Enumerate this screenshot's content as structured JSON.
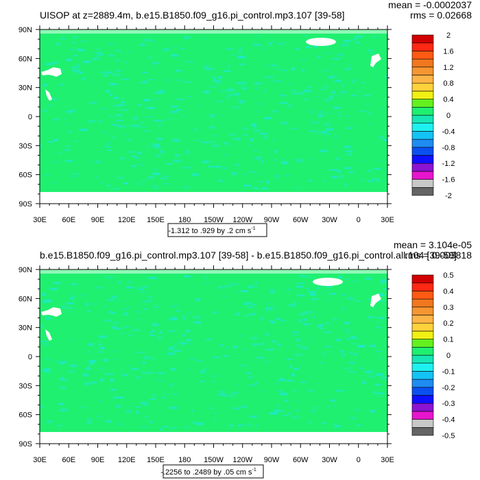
{
  "colors": {
    "background_field": "#20f070",
    "land_mask": "#ffffff",
    "land_speckle": "#1ee8c8"
  },
  "colorbar_colors": [
    "#646464",
    "#c8c8c8",
    "#e615cd",
    "#8c14d2",
    "#0f0fff",
    "#0a50f0",
    "#1e8cf0",
    "#14c3f5",
    "#1ef0f0",
    "#16e6b4",
    "#20f070",
    "#64f020",
    "#f0f014",
    "#ffd23c",
    "#ffb446",
    "#f59632",
    "#f0781e",
    "#ff5a14",
    "#ff2814",
    "#d20000"
  ],
  "chart_data": [
    {
      "type": "heatmap",
      "title": "UISOP at z=2889.4m, b.e15.B1850.f09_g16.pi_control.mp3.107 [39-58]",
      "stats": {
        "mean": "mean = -0.0002037",
        "rms": "rms = 0.02668"
      },
      "contour_info": "-1.312 to .929 by .2 cm s",
      "contour_info_sup": "-1",
      "x_ticks": [
        "30E",
        "60E",
        "90E",
        "120E",
        "150E",
        "180",
        "150W",
        "120W",
        "90W",
        "60W",
        "30W",
        "0",
        "30E"
      ],
      "y_ticks": [
        "90N",
        "60N",
        "30N",
        "0",
        "30S",
        "60S",
        "90S"
      ],
      "colorbar_labels": [
        "2",
        "1.6",
        "1.2",
        "0.8",
        "0.4",
        "0",
        "-0.4",
        "-0.8",
        "-1.2",
        "-1.6",
        "-2"
      ]
    },
    {
      "type": "heatmap",
      "title": "b.e15.B1850.f09_g16.pi_control.mp3.107 [39-58] - b.e15.B1850.f09_g16.pi_control.all.104 [39-58]",
      "stats": {
        "mean": "mean = 3.104e-05",
        "rms": "rms = 0.003818"
      },
      "contour_info": "-.2256 to .2489 by .05 cm s",
      "contour_info_sup": "-1",
      "x_ticks": [
        "30E",
        "60E",
        "90E",
        "120E",
        "150E",
        "180",
        "150W",
        "120W",
        "90W",
        "60W",
        "30W",
        "0",
        "30E"
      ],
      "y_ticks": [
        "90N",
        "60N",
        "30N",
        "0",
        "30S",
        "60S",
        "90S"
      ],
      "colorbar_labels": [
        "0.5",
        "0.4",
        "0.3",
        "0.2",
        "0.1",
        "0",
        "-0.1",
        "-0.2",
        "-0.3",
        "-0.4",
        "-0.5"
      ]
    }
  ]
}
